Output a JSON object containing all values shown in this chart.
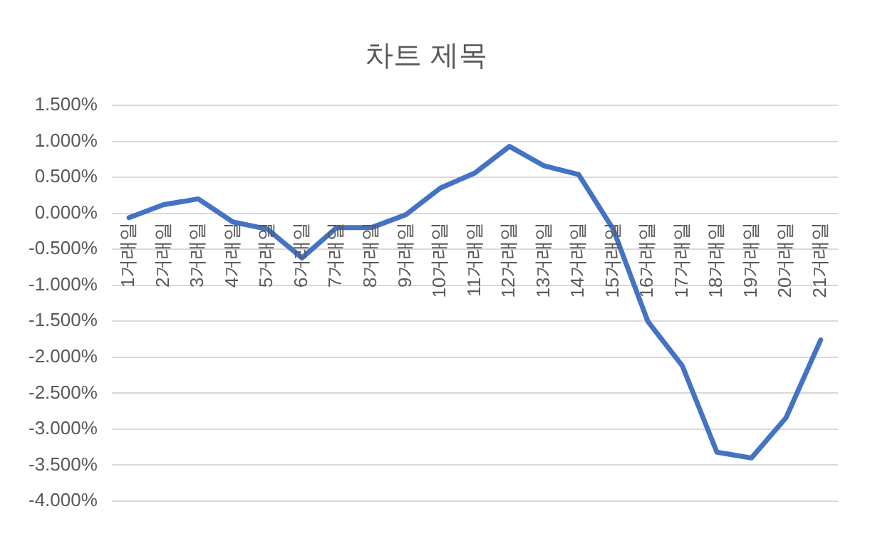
{
  "chart_data": {
    "type": "line",
    "title": "차트 제목",
    "categories": [
      "1거래일",
      "2거래일",
      "3거래일",
      "4거래일",
      "5거래일",
      "6거래일",
      "7거래일",
      "8거래일",
      "9거래일",
      "10거래일",
      "11거래일",
      "12거래일",
      "13거래일",
      "14거래일",
      "15거래일",
      "16거래일",
      "17거래일",
      "18거래일",
      "19거래일",
      "20거래일",
      "21거래일"
    ],
    "values": [
      -0.06,
      0.12,
      0.2,
      -0.12,
      -0.22,
      -0.62,
      -0.2,
      -0.2,
      -0.02,
      0.35,
      0.56,
      0.93,
      0.66,
      0.54,
      -0.22,
      -1.5,
      -2.12,
      -3.32,
      -3.4,
      -2.84,
      -1.76
    ],
    "color": "#4472c4",
    "ylim": [
      -4,
      1.5
    ],
    "yticks": [
      {
        "value": -4,
        "label": "-4.000%"
      },
      {
        "value": -3.5,
        "label": "-3.500%"
      },
      {
        "value": -3,
        "label": "-3.000%"
      },
      {
        "value": -2.5,
        "label": "-2.500%"
      },
      {
        "value": -2,
        "label": "-2.000%"
      },
      {
        "value": -1.5,
        "label": "-1.500%"
      },
      {
        "value": -1,
        "label": "-1.000%"
      },
      {
        "value": -0.5,
        "label": "-0.500%"
      },
      {
        "value": 0,
        "label": "0.000%"
      },
      {
        "value": 0.5,
        "label": "0.500%"
      },
      {
        "value": 1,
        "label": "1.000%"
      },
      {
        "value": 1.5,
        "label": "1.500%"
      }
    ],
    "grid": "y",
    "legend": false,
    "marker": "none",
    "line_style": "solid"
  }
}
